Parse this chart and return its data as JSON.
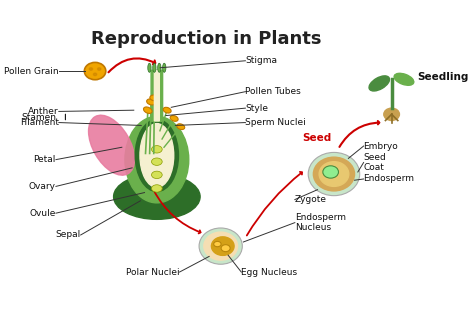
{
  "title": "Reproduction in Plants",
  "title_fontsize": 13,
  "title_fontweight": "bold",
  "labels": {
    "pollen_grain": "Pollen Grain",
    "stigma": "Stigma",
    "stamen": "Stamen",
    "anther": "Anther",
    "filament": "Filament",
    "pollen_tubes": "Pollen Tubes",
    "style": "Style",
    "sperm_nuclei": "Sperm Nuclei",
    "petal": "Petal",
    "ovary": "Ovary",
    "ovule": "Ovule",
    "sepal": "Sepal",
    "polar_nuclei": "Polar Nuclei",
    "egg_nucleus": "Egg Nucleus",
    "seed": "Seed",
    "embryo": "Embryo",
    "seed_coat": "Seed\nCoat",
    "endosperm": "Endosperm",
    "zygote": "Zygote",
    "endosperm_nucleus": "Endosperm\nNucleus",
    "seedling": "Seedling"
  },
  "colors": {
    "background": "#ffffff",
    "flower_outer": "#4a8c3f",
    "flower_inner": "#6ab04c",
    "flower_dark": "#2d6e28",
    "petal_color": "#e87ca0",
    "pollen_color": "#f0a500",
    "pollen_outline": "#c07800",
    "ovule_color": "#c8e6c9",
    "seed_outer": "#c8e6c9",
    "seed_inner": "#f5deb3",
    "seed_core": "#d4a017",
    "embryo_color": "#90ee90",
    "red_arrow": "#cc0000",
    "black_line": "#222222",
    "label_color": "#111111",
    "seedling_green": "#4a8c3f",
    "seedling_light": "#6ab04c",
    "root_color": "#8d6e28",
    "seed_base": "#c8a050"
  }
}
